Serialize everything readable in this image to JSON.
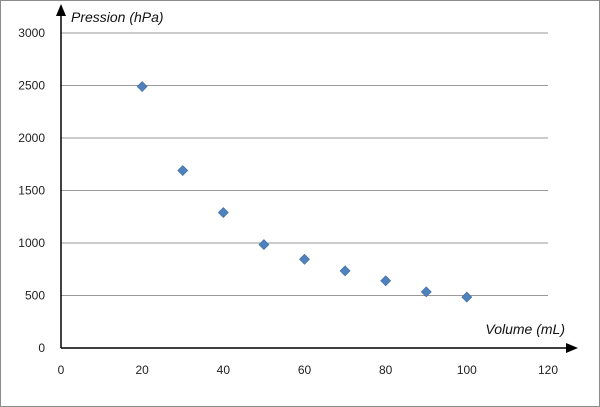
{
  "chart_data": {
    "type": "scatter",
    "title": "",
    "xlabel": "Volume (mL)",
    "ylabel": "Pression (hPa)",
    "xlim": [
      0,
      120
    ],
    "ylim": [
      0,
      3000
    ],
    "x_ticks": [
      "0",
      "20",
      "40",
      "60",
      "80",
      "100",
      "120"
    ],
    "y_ticks": [
      "0",
      "500",
      "1000",
      "1500",
      "2000",
      "2500",
      "3000"
    ],
    "grid": "horizontal",
    "legend": "none",
    "marker": "diamond",
    "marker_color": "#4f81bd",
    "series": [
      {
        "points": [
          {
            "x": 20,
            "y": 2490
          },
          {
            "x": 30,
            "y": 1690
          },
          {
            "x": 40,
            "y": 1290
          },
          {
            "x": 50,
            "y": 985
          },
          {
            "x": 60,
            "y": 845
          },
          {
            "x": 70,
            "y": 735
          },
          {
            "x": 80,
            "y": 640
          },
          {
            "x": 90,
            "y": 535
          },
          {
            "x": 100,
            "y": 485
          }
        ]
      }
    ]
  }
}
